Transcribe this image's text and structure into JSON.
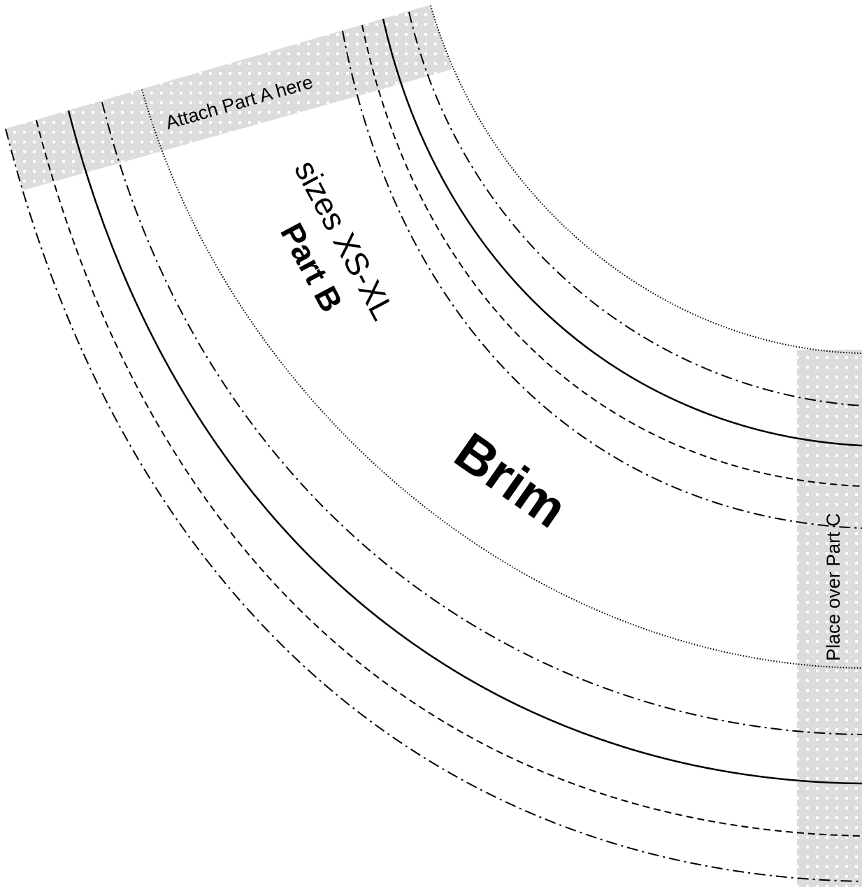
{
  "pattern_piece": {
    "name": "Brim",
    "part": "Part B",
    "sizes": "sizes XS-XL"
  },
  "labels": {
    "attach": "Attach Part A here",
    "place": "Place over Part C"
  },
  "colors": {
    "overlap_band": "#dcdcdc",
    "band_dots": "#ffffff",
    "lines": "#000000",
    "background": "#ffffff"
  },
  "line_styles": [
    "dotted",
    "dash-dot",
    "dashed",
    "solid"
  ]
}
